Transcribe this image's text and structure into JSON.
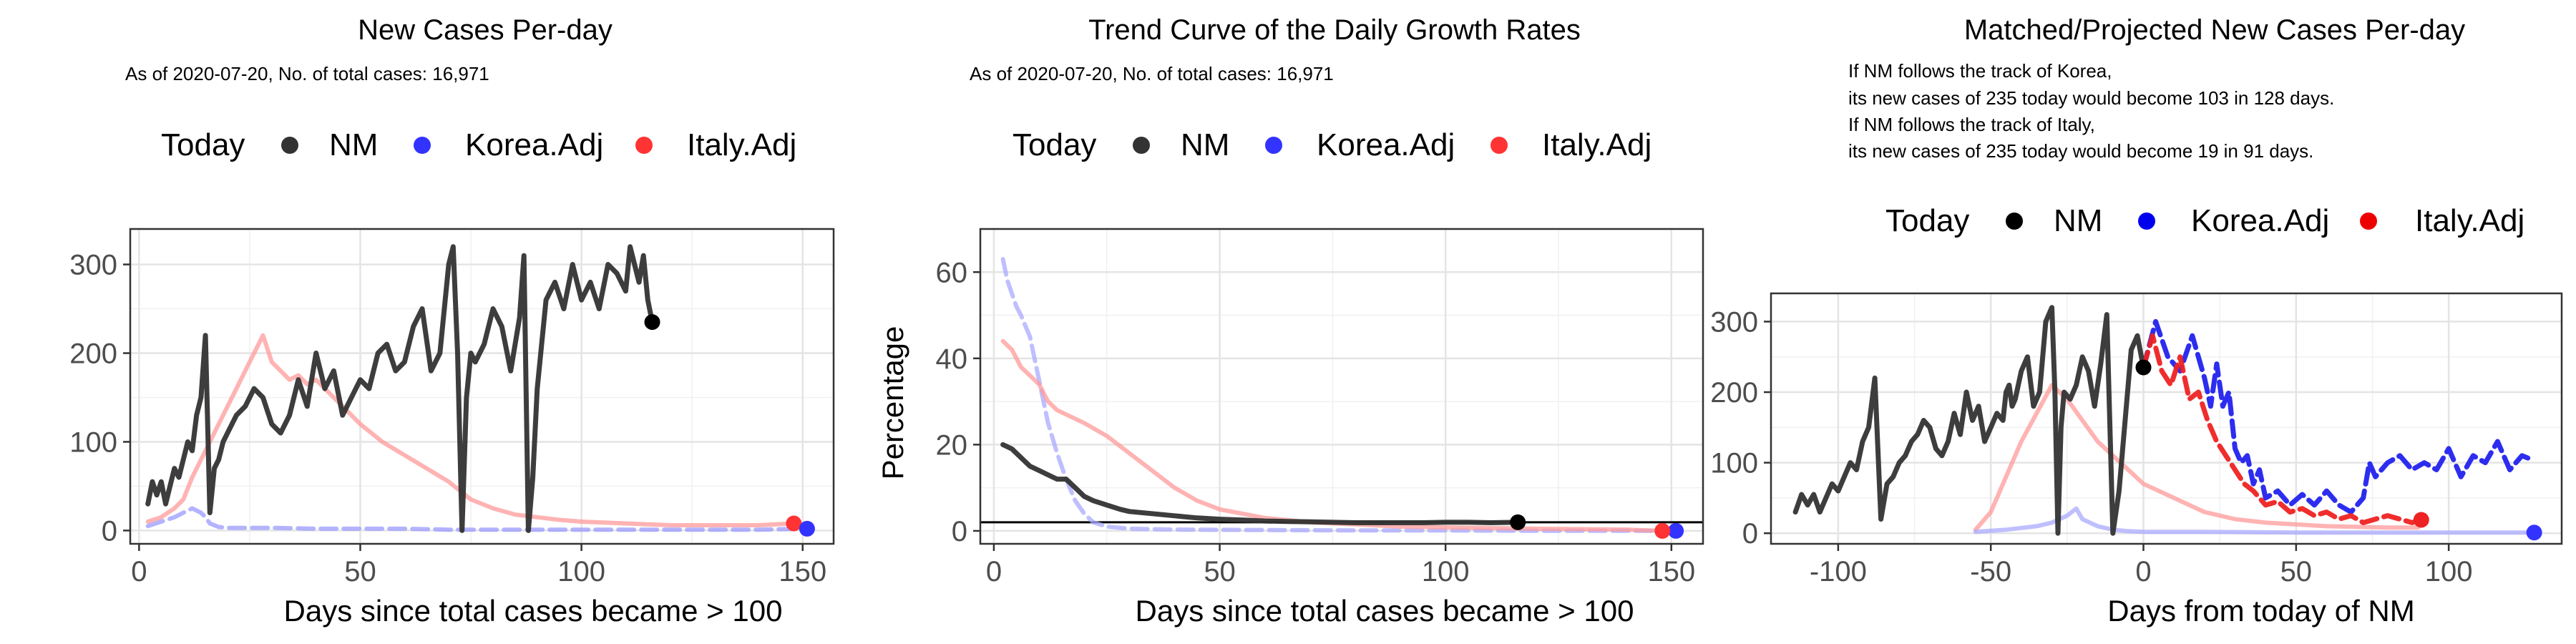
{
  "chart_data": [
    {
      "type": "line",
      "title": "New Cases Per-day",
      "subtitle_lines": [
        "As of 2020-07-20, No. of total cases: 16,971"
      ],
      "xlabel": "Days since total cases became > 100",
      "ylabel": "",
      "xlim": [
        -2,
        157
      ],
      "ylim": [
        -15,
        340
      ],
      "xticks": [
        0,
        50,
        100,
        150
      ],
      "yticks": [
        0,
        100,
        200,
        300
      ],
      "legend": {
        "title": "Today",
        "position": "top",
        "entries": [
          {
            "label": "NM",
            "color": "#333333"
          },
          {
            "label": "Korea.Adj",
            "color": "#3333ff"
          },
          {
            "label": "Italy.Adj",
            "color": "#ff3333"
          }
        ]
      },
      "series": [
        {
          "name": "Italy.Adj",
          "color": "#ff9999",
          "today": [
            148,
            8
          ],
          "x": [
            2,
            5,
            8,
            10,
            12,
            14,
            16,
            18,
            20,
            22,
            24,
            26,
            28,
            30,
            32,
            34,
            36,
            38,
            40,
            42,
            44,
            46,
            48,
            50,
            55,
            60,
            65,
            70,
            75,
            80,
            85,
            90,
            95,
            100,
            110,
            120,
            130,
            140,
            148
          ],
          "y": [
            10,
            15,
            25,
            35,
            60,
            80,
            100,
            120,
            140,
            160,
            180,
            200,
            220,
            190,
            180,
            170,
            175,
            165,
            170,
            160,
            150,
            140,
            130,
            120,
            100,
            85,
            70,
            55,
            35,
            25,
            18,
            15,
            12,
            10,
            8,
            6,
            6,
            6,
            8
          ]
        },
        {
          "name": "Korea.Adj",
          "color": "#9999ff",
          "today": [
            151,
            2
          ],
          "x": [
            2,
            5,
            8,
            10,
            12,
            14,
            15,
            16,
            18,
            20,
            25,
            30,
            40,
            50,
            60,
            70,
            80,
            90,
            100,
            110,
            120,
            130,
            140,
            151
          ],
          "y": [
            5,
            10,
            15,
            20,
            25,
            20,
            15,
            8,
            4,
            3,
            3,
            3,
            2,
            2,
            2,
            1,
            1,
            1,
            1,
            1,
            1,
            1,
            1,
            2
          ]
        },
        {
          "name": "NM",
          "color": "#333333",
          "today": [
            116,
            235
          ],
          "x": [
            2,
            3,
            4,
            5,
            6,
            7,
            8,
            9,
            10,
            11,
            12,
            13,
            14,
            15,
            16,
            17,
            18,
            19,
            20,
            22,
            24,
            26,
            28,
            30,
            32,
            34,
            36,
            38,
            40,
            42,
            44,
            46,
            48,
            50,
            52,
            54,
            56,
            58,
            60,
            62,
            64,
            66,
            68,
            70,
            71,
            72,
            73,
            74,
            75,
            76,
            78,
            80,
            82,
            84,
            86,
            87,
            88,
            89,
            90,
            92,
            94,
            96,
            98,
            100,
            102,
            104,
            106,
            108,
            110,
            111,
            112,
            113,
            114,
            115,
            116
          ],
          "y": [
            30,
            55,
            40,
            55,
            30,
            50,
            70,
            60,
            80,
            100,
            90,
            130,
            150,
            220,
            20,
            70,
            80,
            100,
            110,
            130,
            140,
            160,
            150,
            120,
            110,
            130,
            170,
            140,
            200,
            160,
            180,
            130,
            150,
            170,
            160,
            200,
            210,
            180,
            190,
            230,
            250,
            180,
            200,
            300,
            320,
            200,
            0,
            150,
            200,
            190,
            210,
            250,
            230,
            180,
            240,
            310,
            0,
            60,
            160,
            260,
            280,
            250,
            300,
            260,
            280,
            250,
            300,
            290,
            270,
            320,
            300,
            280,
            310,
            260,
            235
          ]
        }
      ]
    },
    {
      "type": "line",
      "title": "Trend Curve of the Daily Growth Rates",
      "subtitle_lines": [
        "As of 2020-07-20, No. of total cases: 16,971"
      ],
      "xlabel": "Days since total cases became > 100",
      "ylabel": "Percentage",
      "xlim": [
        -3,
        157
      ],
      "ylim": [
        -3,
        70
      ],
      "xticks": [
        0,
        50,
        100,
        150
      ],
      "yticks": [
        0,
        20,
        40,
        60
      ],
      "hline": 2,
      "legend": {
        "title": "Today",
        "position": "top",
        "entries": [
          {
            "label": "NM",
            "color": "#333333"
          },
          {
            "label": "Korea.Adj",
            "color": "#3333ff"
          },
          {
            "label": "Italy.Adj",
            "color": "#ff3333"
          }
        ]
      },
      "series": [
        {
          "name": "Korea.Adj",
          "color": "#aaaaff",
          "today": [
            151,
            0
          ],
          "x": [
            2,
            3,
            4,
            5,
            6,
            8,
            10,
            12,
            14,
            16,
            18,
            20,
            22,
            25,
            30,
            40,
            60,
            80,
            100,
            120,
            140,
            151
          ],
          "y": [
            63,
            58,
            55,
            52,
            50,
            45,
            35,
            25,
            18,
            12,
            7,
            4,
            2,
            1,
            0.5,
            0.3,
            0.2,
            0.1,
            0.1,
            0,
            0,
            0
          ]
        },
        {
          "name": "Italy.Adj",
          "color": "#ff9999",
          "today": [
            148,
            0
          ],
          "x": [
            2,
            4,
            6,
            8,
            10,
            12,
            14,
            16,
            18,
            20,
            25,
            30,
            35,
            40,
            45,
            50,
            60,
            70,
            80,
            90,
            100,
            120,
            140,
            148
          ],
          "y": [
            44,
            42,
            38,
            36,
            34,
            30,
            28,
            27,
            26,
            25,
            22,
            18,
            14,
            10,
            7,
            5,
            3,
            2,
            1.5,
            1,
            0.8,
            0.5,
            0.3,
            0
          ]
        },
        {
          "name": "NM",
          "color": "#333333",
          "today": [
            116,
            2
          ],
          "x": [
            2,
            4,
            6,
            8,
            10,
            12,
            14,
            16,
            18,
            20,
            22,
            25,
            28,
            30,
            35,
            40,
            45,
            50,
            55,
            60,
            65,
            70,
            75,
            80,
            85,
            90,
            95,
            100,
            105,
            110,
            116
          ],
          "y": [
            20,
            19,
            17,
            15,
            14,
            13,
            12,
            12,
            10,
            8,
            7,
            6,
            5,
            4.5,
            4,
            3.5,
            3,
            2.7,
            2.5,
            2.3,
            2.2,
            2.1,
            2,
            1.9,
            1.9,
            1.9,
            1.9,
            2,
            2,
            1.9,
            2
          ]
        }
      ]
    },
    {
      "type": "line",
      "title": "Matched/Projected New Cases Per-day",
      "subtitle_lines": [
        "If NM follows the track of Korea,",
        "its new cases of 235 today would become 103 in 128 days.",
        "If NM follows the track of Italy,",
        "its new cases of 235 today would become 19 in 91 days."
      ],
      "xlabel": "Days from today of NM",
      "ylabel": "",
      "xlim": [
        -122,
        137
      ],
      "ylim": [
        -15,
        340
      ],
      "xticks": [
        -100,
        -50,
        0,
        50,
        100
      ],
      "yticks": [
        0,
        100,
        200,
        300
      ],
      "legend": {
        "title": "Today",
        "position": "top",
        "entries": [
          {
            "label": "NM",
            "color": "#000000"
          },
          {
            "label": "Korea.Adj",
            "color": "#0000ee"
          },
          {
            "label": "Italy.Adj",
            "color": "#ee0000"
          }
        ]
      },
      "series": [
        {
          "name": "Italy.Adj (history)",
          "color": "#ff9999",
          "x": [
            -55,
            -50,
            -45,
            -40,
            -35,
            -30,
            -25,
            -20,
            -15,
            -10,
            -5,
            0,
            10,
            20,
            30,
            40,
            60,
            80,
            90
          ],
          "y": [
            5,
            30,
            80,
            130,
            170,
            210,
            190,
            160,
            130,
            110,
            90,
            70,
            50,
            30,
            20,
            15,
            10,
            8,
            8
          ]
        },
        {
          "name": "Korea.Adj (history)",
          "color": "#aaaaff",
          "today": [
            128,
            1
          ],
          "x": [
            -55,
            -45,
            -35,
            -30,
            -25,
            -22,
            -20,
            -15,
            -10,
            -5,
            0,
            20,
            50,
            80,
            110,
            128
          ],
          "y": [
            2,
            5,
            10,
            15,
            25,
            35,
            20,
            10,
            5,
            3,
            2,
            2,
            1,
            1,
            1,
            1
          ]
        },
        {
          "name": "NM",
          "color": "#333333",
          "today": [
            0,
            235
          ],
          "x": [
            -114,
            -112,
            -110,
            -108,
            -106,
            -104,
            -102,
            -100,
            -98,
            -96,
            -94,
            -92,
            -90,
            -88,
            -86,
            -84,
            -82,
            -80,
            -78,
            -76,
            -74,
            -72,
            -70,
            -68,
            -66,
            -64,
            -62,
            -60,
            -58,
            -56,
            -54,
            -52,
            -50,
            -48,
            -46,
            -45,
            -44,
            -43,
            -42,
            -40,
            -38,
            -36,
            -34,
            -32,
            -30,
            -29,
            -28,
            -27,
            -26,
            -24,
            -22,
            -20,
            -18,
            -16,
            -14,
            -12,
            -10,
            -8,
            -6,
            -4,
            -2,
            0
          ],
          "y": [
            30,
            55,
            40,
            55,
            30,
            50,
            70,
            60,
            80,
            100,
            90,
            130,
            150,
            220,
            20,
            70,
            80,
            100,
            110,
            130,
            140,
            160,
            150,
            120,
            110,
            130,
            170,
            140,
            200,
            160,
            180,
            130,
            150,
            170,
            160,
            200,
            210,
            180,
            190,
            230,
            250,
            180,
            200,
            300,
            320,
            200,
            0,
            150,
            200,
            190,
            210,
            250,
            230,
            180,
            240,
            310,
            0,
            60,
            160,
            260,
            280,
            235
          ]
        },
        {
          "name": "Korea.Adj",
          "color": "#2222ee",
          "x": [
            0,
            4,
            8,
            12,
            16,
            20,
            22,
            24,
            26,
            28,
            30,
            32,
            34,
            36,
            38,
            40,
            44,
            48,
            52,
            56,
            60,
            64,
            68,
            72,
            74,
            76,
            80,
            84,
            88,
            92,
            96,
            100,
            104,
            108,
            112,
            116,
            120,
            124,
            128
          ],
          "y": [
            235,
            300,
            250,
            230,
            280,
            220,
            180,
            240,
            180,
            200,
            120,
            100,
            110,
            70,
            90,
            50,
            60,
            40,
            55,
            40,
            60,
            40,
            30,
            50,
            100,
            80,
            100,
            110,
            90,
            100,
            90,
            120,
            80,
            110,
            100,
            130,
            90,
            110,
            103
          ]
        },
        {
          "name": "Italy.Adj",
          "color": "#ee2222",
          "today": [
            91,
            19
          ],
          "x": [
            0,
            3,
            6,
            9,
            12,
            15,
            18,
            21,
            24,
            27,
            30,
            33,
            36,
            40,
            44,
            48,
            52,
            56,
            60,
            64,
            68,
            72,
            76,
            80,
            84,
            88,
            91
          ],
          "y": [
            235,
            280,
            230,
            210,
            250,
            190,
            200,
            160,
            130,
            110,
            90,
            70,
            60,
            40,
            45,
            30,
            35,
            25,
            30,
            20,
            25,
            15,
            20,
            25,
            20,
            15,
            19
          ]
        }
      ]
    }
  ]
}
